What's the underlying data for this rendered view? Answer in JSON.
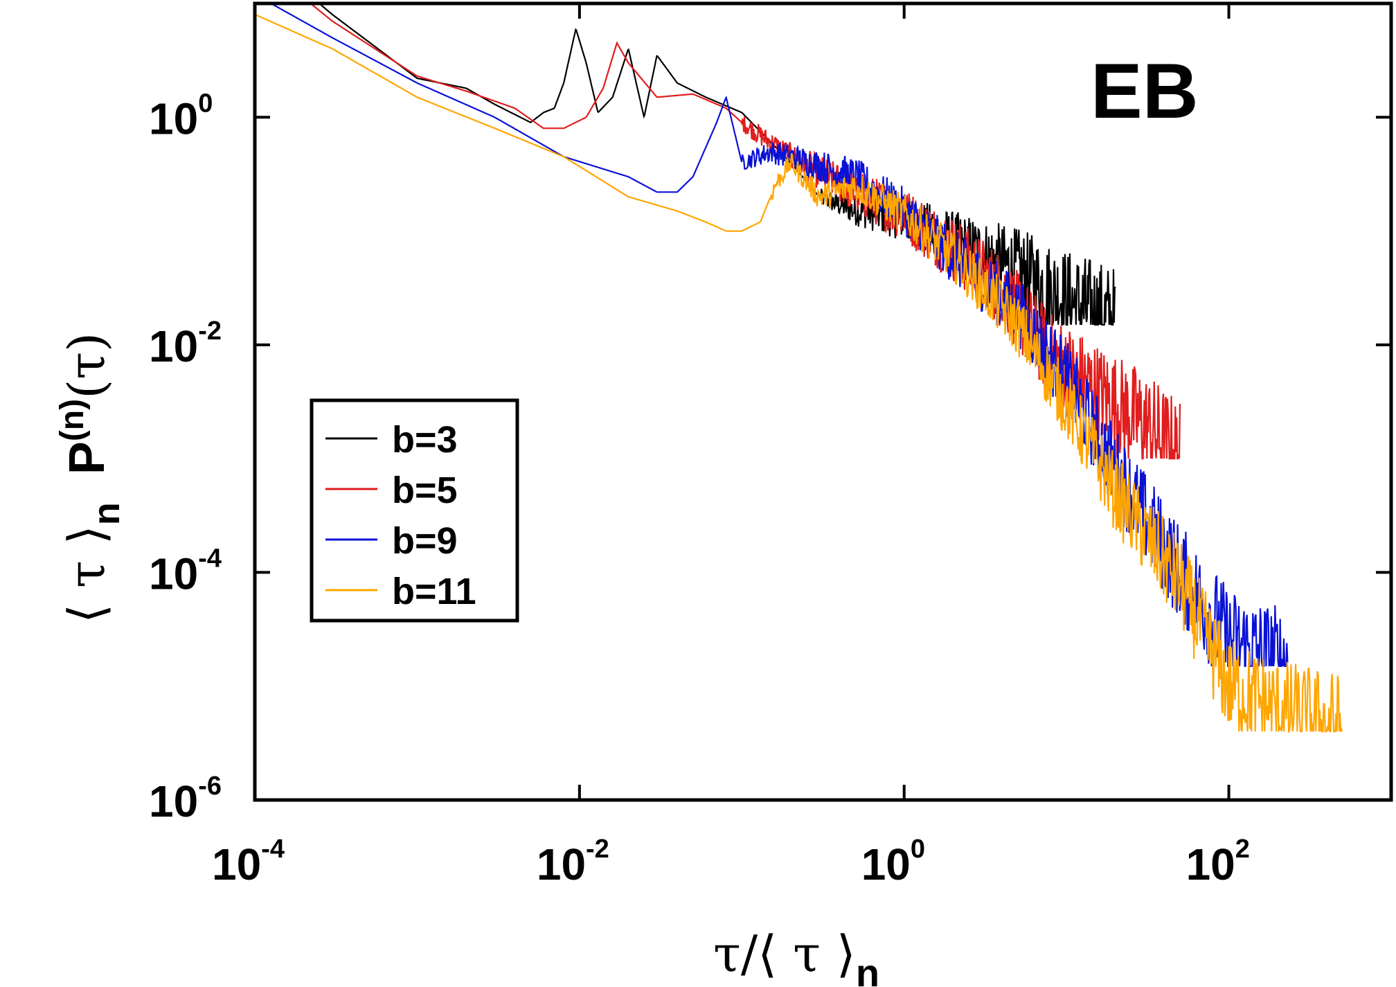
{
  "chart_data": {
    "type": "line",
    "panel_label": "EB",
    "xscale": "log",
    "yscale": "log",
    "xlim": [
      0.0001,
      1000
    ],
    "ylim": [
      1e-06,
      10
    ],
    "x_ticks": [
      {
        "value": 0.0001,
        "base": "10",
        "exp": "-4"
      },
      {
        "value": 0.01,
        "base": "10",
        "exp": "-2"
      },
      {
        "value": 1,
        "base": "10",
        "exp": "0"
      },
      {
        "value": 100,
        "base": "10",
        "exp": "2"
      }
    ],
    "y_ticks": [
      {
        "value": 1e-06,
        "base": "10",
        "exp": "-6"
      },
      {
        "value": 0.0001,
        "base": "10",
        "exp": "-4"
      },
      {
        "value": 0.01,
        "base": "10",
        "exp": "-2"
      },
      {
        "value": 1,
        "base": "10",
        "exp": "0"
      }
    ],
    "xlabel": {
      "tau": "τ",
      "slash": "/⟨ τ ⟩",
      "sub": "n"
    },
    "ylabel": {
      "bracket": "⟨ τ ⟩",
      "sub": "n",
      "P": "P",
      "sup": "(n)",
      "arg": "(τ)"
    },
    "legend_position": "middle-left",
    "series": [
      {
        "name": "b=3",
        "color": "#000000",
        "points": [
          [
            0.0001,
            30
          ],
          [
            0.0003,
            8
          ],
          [
            0.001,
            2.2
          ],
          [
            0.002,
            1.8
          ],
          [
            0.003,
            1.3
          ],
          [
            0.005,
            0.9
          ],
          [
            0.006,
            1.1
          ],
          [
            0.007,
            1.2
          ],
          [
            0.008,
            2.0
          ],
          [
            0.0095,
            6.0
          ],
          [
            0.011,
            3.0
          ],
          [
            0.013,
            1.1
          ],
          [
            0.016,
            1.5
          ],
          [
            0.02,
            4.0
          ],
          [
            0.025,
            1.0
          ],
          [
            0.03,
            3.5
          ],
          [
            0.04,
            2.0
          ],
          [
            0.06,
            1.5
          ],
          [
            0.1,
            1.1
          ],
          [
            0.2,
            0.4
          ],
          [
            0.3,
            0.2
          ],
          [
            0.5,
            0.15
          ],
          [
            1,
            0.13
          ],
          [
            2,
            0.08
          ],
          [
            5,
            0.045
          ],
          [
            10,
            0.025
          ],
          [
            20,
            0.015
          ]
        ],
        "noise_x_from": 0.3,
        "noise_x_to": 20,
        "noise_floor": 0.015
      },
      {
        "name": "b=5",
        "color": "#e11d1d",
        "points": [
          [
            0.0001,
            25
          ],
          [
            0.0003,
            7
          ],
          [
            0.001,
            2.3
          ],
          [
            0.002,
            1.7
          ],
          [
            0.004,
            1.2
          ],
          [
            0.006,
            0.8
          ],
          [
            0.008,
            0.8
          ],
          [
            0.011,
            1.0
          ],
          [
            0.014,
            1.8
          ],
          [
            0.017,
            4.5
          ],
          [
            0.02,
            3.0
          ],
          [
            0.03,
            1.5
          ],
          [
            0.05,
            1.6
          ],
          [
            0.08,
            1.2
          ],
          [
            0.1,
            0.9
          ],
          [
            0.2,
            0.45
          ],
          [
            0.5,
            0.22
          ],
          [
            1,
            0.14
          ],
          [
            2,
            0.07
          ],
          [
            4,
            0.03
          ],
          [
            8,
            0.008
          ],
          [
            15,
            0.004
          ],
          [
            30,
            0.002
          ],
          [
            50,
            0.001
          ]
        ],
        "noise_x_from": 0.1,
        "noise_x_to": 50,
        "noise_floor": 0.001
      },
      {
        "name": "b=9",
        "color": "#0a12d6",
        "points": [
          [
            0.0001,
            12
          ],
          [
            0.0003,
            5
          ],
          [
            0.001,
            2.0
          ],
          [
            0.003,
            1.0
          ],
          [
            0.008,
            0.45
          ],
          [
            0.02,
            0.3
          ],
          [
            0.03,
            0.22
          ],
          [
            0.04,
            0.22
          ],
          [
            0.05,
            0.3
          ],
          [
            0.07,
            0.9
          ],
          [
            0.08,
            1.5
          ],
          [
            0.1,
            0.4
          ],
          [
            0.15,
            0.5
          ],
          [
            0.2,
            0.45
          ],
          [
            0.5,
            0.3
          ],
          [
            1,
            0.15
          ],
          [
            2,
            0.06
          ],
          [
            5,
            0.02
          ],
          [
            10,
            0.005
          ],
          [
            20,
            0.0008
          ],
          [
            50,
            0.0001
          ],
          [
            100,
            2.5e-05
          ],
          [
            230,
            1.5e-05
          ]
        ],
        "noise_x_from": 0.1,
        "noise_x_to": 230,
        "noise_floor": 1.5e-05
      },
      {
        "name": "b=11",
        "color": "#ffa500",
        "points": [
          [
            0.0001,
            8
          ],
          [
            0.0003,
            4
          ],
          [
            0.001,
            1.5
          ],
          [
            0.003,
            0.8
          ],
          [
            0.008,
            0.45
          ],
          [
            0.02,
            0.2
          ],
          [
            0.04,
            0.15
          ],
          [
            0.06,
            0.12
          ],
          [
            0.08,
            0.1
          ],
          [
            0.1,
            0.1
          ],
          [
            0.13,
            0.12
          ],
          [
            0.16,
            0.25
          ],
          [
            0.2,
            0.4
          ],
          [
            0.3,
            0.2
          ],
          [
            0.5,
            0.25
          ],
          [
            1,
            0.14
          ],
          [
            2,
            0.06
          ],
          [
            5,
            0.015
          ],
          [
            10,
            0.003
          ],
          [
            20,
            0.0005
          ],
          [
            50,
            8e-05
          ],
          [
            100,
            1e-05
          ],
          [
            200,
            6e-06
          ],
          [
            500,
            4e-06
          ]
        ],
        "noise_x_from": 0.15,
        "noise_x_to": 500,
        "noise_floor": 4e-06
      }
    ]
  }
}
